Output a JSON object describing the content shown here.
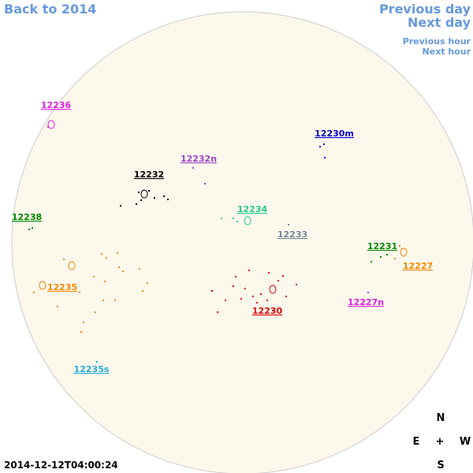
{
  "nav": {
    "back": "Back to 2014",
    "previous_day": "Previous day",
    "next_day": "Next day",
    "previous_hour": "Previous hour",
    "next_hour": "Next hour"
  },
  "regions": [
    {
      "label": "12236",
      "color": "#e020e0"
    },
    {
      "label": "12230m",
      "color": "#0000cc"
    },
    {
      "label": "12232n",
      "color": "#9944cc"
    },
    {
      "label": "12232",
      "color": "#000000"
    },
    {
      "label": "12238",
      "color": "#008800"
    },
    {
      "label": "12234",
      "color": "#22cc88"
    },
    {
      "label": "12233",
      "color": "#778899"
    },
    {
      "label": "12231",
      "color": "#008800"
    },
    {
      "label": "12227",
      "color": "#ee8800"
    },
    {
      "label": "12235",
      "color": "#ee8800"
    },
    {
      "label": "12227n",
      "color": "#e020e0"
    },
    {
      "label": "12230",
      "color": "#dd0000"
    },
    {
      "label": "12235s",
      "color": "#22aadd"
    }
  ],
  "compass": {
    "north": "N",
    "east": "E",
    "center": "+",
    "west": "W",
    "south": "S"
  },
  "timestamp": "2014-12-12T04:00:24"
}
